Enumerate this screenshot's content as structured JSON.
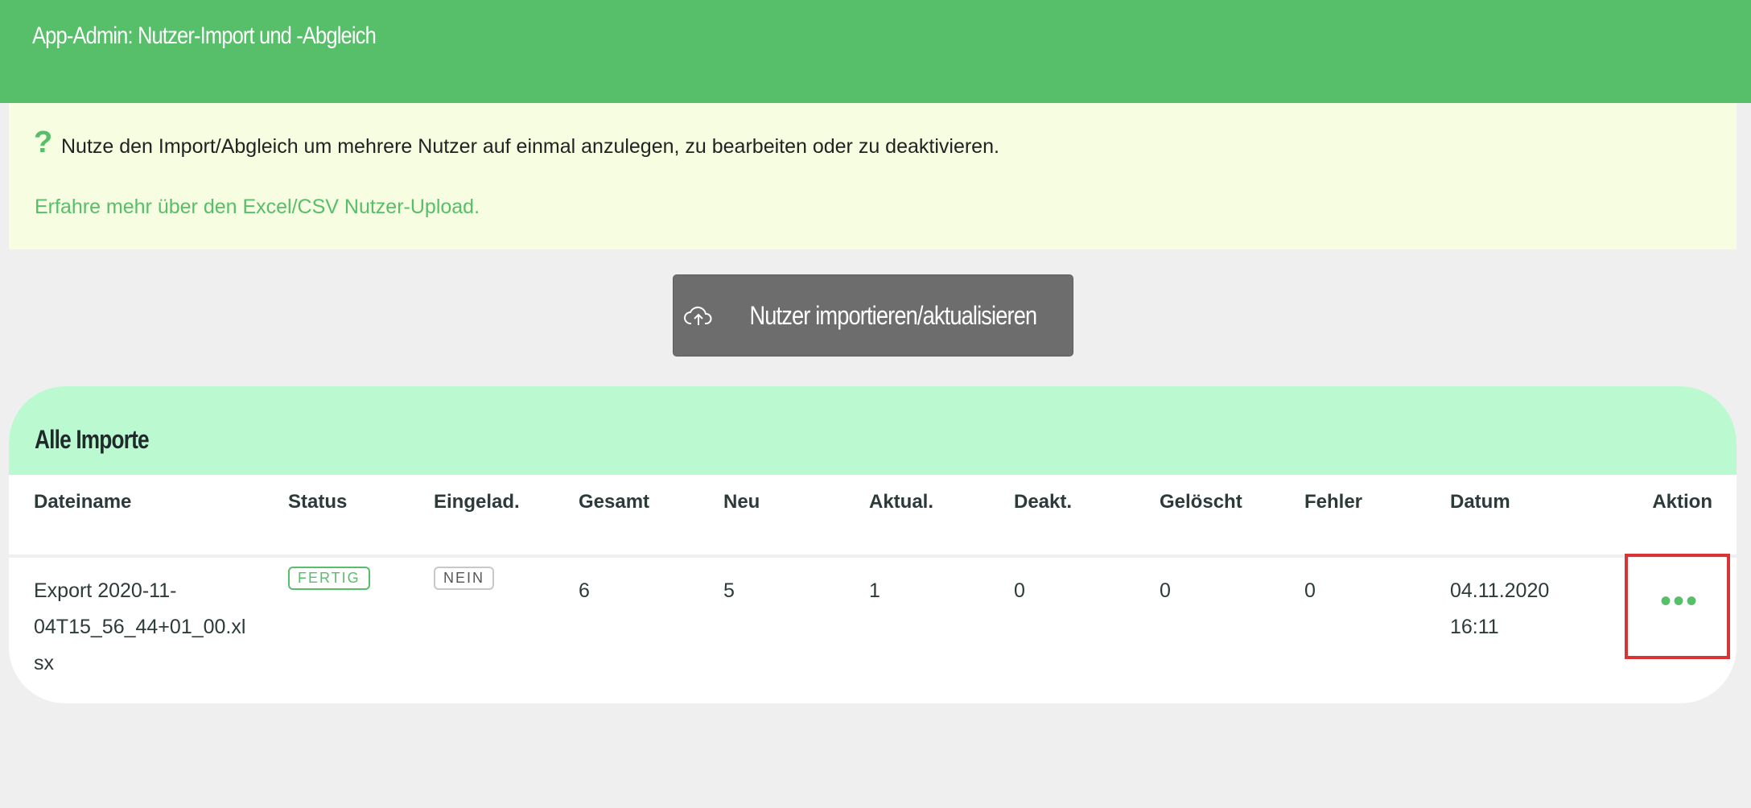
{
  "header": {
    "title": "App-Admin: Nutzer-Import und -Abgleich"
  },
  "info": {
    "icon": "question-mark-icon",
    "icon_glyph": "?",
    "text": "Nutze den Import/Abgleich um mehrere Nutzer auf einmal anzulegen, zu bearbeiten oder zu deaktivieren.",
    "link": "Erfahre mehr über den Excel/CSV Nutzer-Upload."
  },
  "import_button": {
    "label": "Nutzer importieren/aktualisieren",
    "icon": "cloud-upload-icon"
  },
  "imports": {
    "title": "Alle Importe",
    "columns": [
      "Dateiname",
      "Status",
      "Eingelad.",
      "Gesamt",
      "Neu",
      "Aktual.",
      "Deakt.",
      "Gelöscht",
      "Fehler",
      "Datum",
      "Aktion"
    ],
    "rows": [
      {
        "filename_lines": [
          "Export 2020-11-",
          "04T15_56_44+01_00.xl",
          "sx"
        ],
        "status": "FERTIG",
        "invited": "NEIN",
        "total": "6",
        "new": "5",
        "updated": "1",
        "deactivated": "0",
        "deleted": "0",
        "errors": "0",
        "date": "04.11.2020",
        "time": "16:11",
        "action_glyph": "•••"
      }
    ]
  },
  "colors": {
    "brand": "#57be6a",
    "card_header": "#bbfad0",
    "info_bg": "#f7fde1",
    "highlight": "#d93434"
  }
}
